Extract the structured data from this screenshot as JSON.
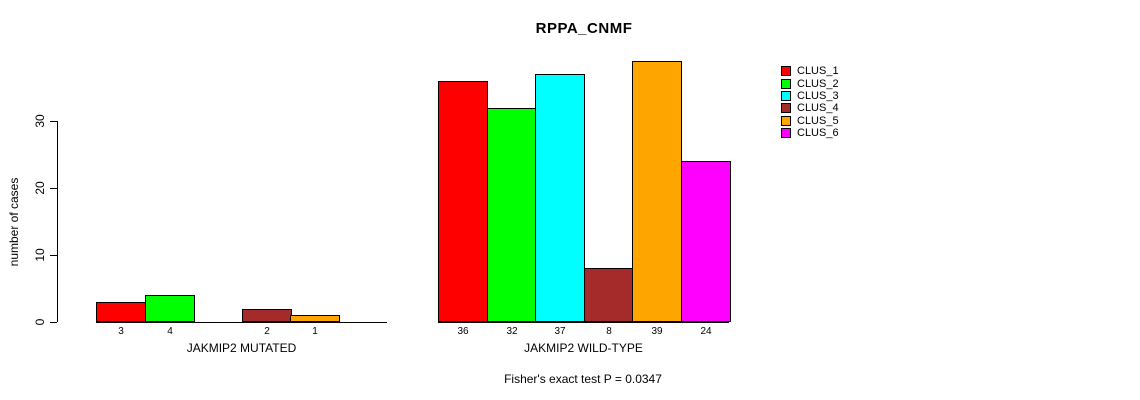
{
  "chart_data": {
    "type": "bar",
    "title": "RPPA_CNMF",
    "ylabel": "number of cases",
    "xlabel": "",
    "ylim": [
      0,
      40
    ],
    "yticks": [
      0,
      10,
      20,
      30
    ],
    "grid": false,
    "legend_position": "right-outside",
    "clusters": [
      "CLUS_1",
      "CLUS_2",
      "CLUS_3",
      "CLUS_4",
      "CLUS_5",
      "CLUS_6"
    ],
    "colors": [
      "#FF0000",
      "#00FF00",
      "#00FFFF",
      "#A52A2A",
      "#FFA500",
      "#FF00FF"
    ],
    "groups": [
      {
        "label": "JAKMIP2 MUTATED",
        "values": [
          3,
          4,
          0,
          2,
          1,
          0
        ]
      },
      {
        "label": "JAKMIP2 WILD-TYPE",
        "values": [
          36,
          32,
          37,
          8,
          39,
          24
        ]
      }
    ],
    "value_label_rule": "values printed under each non-zero bar",
    "annotation": "Fisher's exact test P = 0.0347"
  }
}
